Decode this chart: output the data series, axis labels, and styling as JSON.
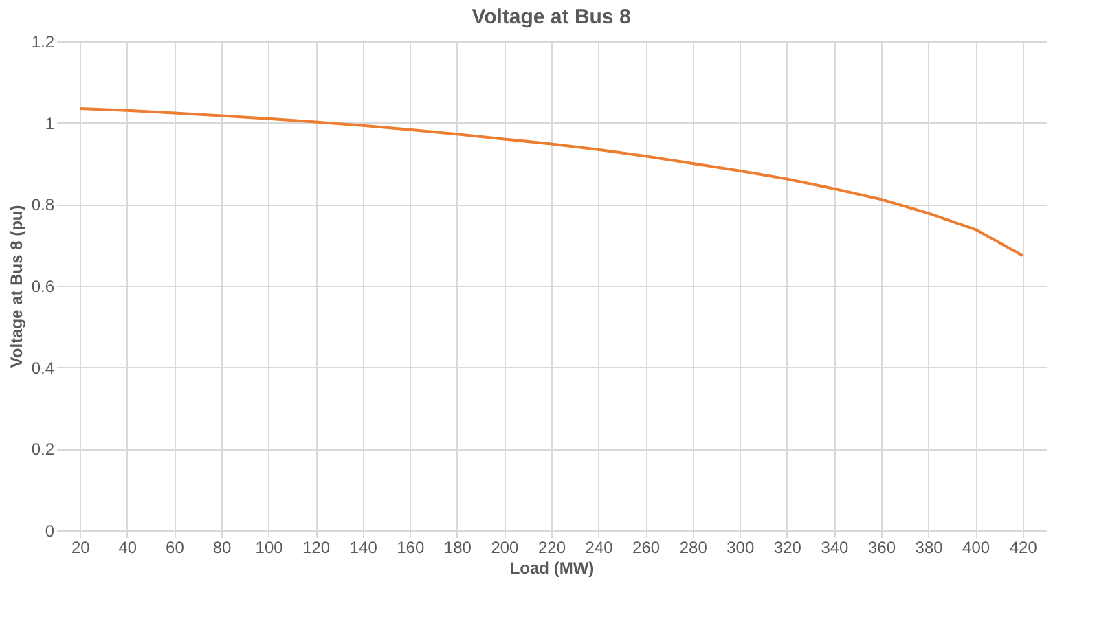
{
  "chart_data": {
    "type": "line",
    "title": "Voltage at Bus 8",
    "xlabel": "Load (MW)",
    "ylabel": "Voltage at Bus 8 (pu)",
    "categories": [
      "20",
      "40",
      "60",
      "80",
      "100",
      "120",
      "140",
      "160",
      "180",
      "200",
      "220",
      "240",
      "260",
      "280",
      "300",
      "320",
      "340",
      "360",
      "380",
      "400",
      "420"
    ],
    "series": [
      {
        "color": "#ed7d31",
        "values": [
          1.035,
          1.03,
          1.024,
          1.017,
          1.01,
          1.002,
          0.993,
          0.983,
          0.972,
          0.96,
          0.948,
          0.934,
          0.918,
          0.9,
          0.882,
          0.862,
          0.838,
          0.812,
          0.778,
          0.738,
          0.674
        ]
      }
    ],
    "ylim": [
      0,
      1.2
    ],
    "yticks": [
      0,
      0.2,
      0.4,
      0.6,
      0.8,
      1,
      1.2
    ],
    "grid": true,
    "legend": false,
    "marker": "none",
    "line_style": "solid"
  }
}
